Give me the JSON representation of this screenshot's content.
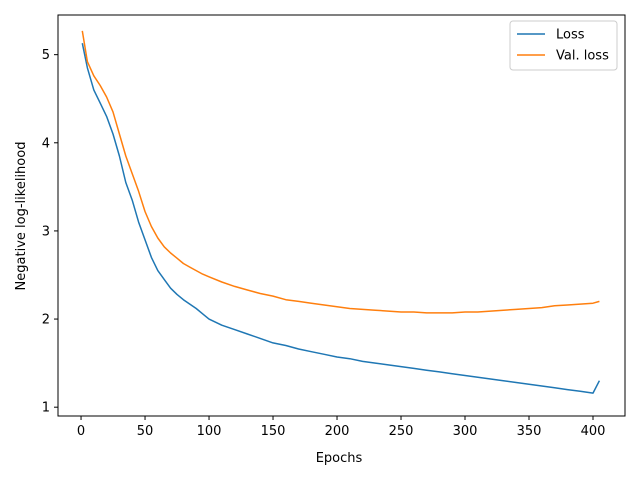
{
  "chart_data": {
    "type": "line",
    "xlabel": "Epochs",
    "ylabel": "Negative log-likelihood",
    "xlim": [
      -18,
      425
    ],
    "ylim": [
      0.9,
      5.45
    ],
    "x_ticks": [
      0,
      50,
      100,
      150,
      200,
      250,
      300,
      350,
      400
    ],
    "y_ticks": [
      1,
      2,
      3,
      4,
      5
    ],
    "grid": false,
    "legend_position": "top-right",
    "series": [
      {
        "name": "Loss",
        "color": "#1f77b4",
        "x": [
          1,
          5,
          10,
          15,
          20,
          25,
          30,
          35,
          40,
          45,
          50,
          55,
          60,
          65,
          70,
          75,
          80,
          85,
          90,
          95,
          100,
          110,
          120,
          130,
          140,
          150,
          160,
          170,
          180,
          190,
          200,
          210,
          220,
          230,
          240,
          250,
          260,
          270,
          280,
          290,
          300,
          310,
          320,
          330,
          340,
          350,
          360,
          370,
          380,
          390,
          400,
          405
        ],
        "values": [
          5.13,
          4.85,
          4.6,
          4.45,
          4.3,
          4.1,
          3.85,
          3.55,
          3.35,
          3.1,
          2.9,
          2.7,
          2.55,
          2.45,
          2.35,
          2.28,
          2.22,
          2.17,
          2.12,
          2.06,
          2.0,
          1.93,
          1.88,
          1.83,
          1.78,
          1.73,
          1.7,
          1.66,
          1.63,
          1.6,
          1.57,
          1.55,
          1.52,
          1.5,
          1.48,
          1.46,
          1.44,
          1.42,
          1.4,
          1.38,
          1.36,
          1.34,
          1.32,
          1.3,
          1.28,
          1.26,
          1.24,
          1.22,
          1.2,
          1.18,
          1.16,
          1.3
        ]
      },
      {
        "name": "Val. loss",
        "color": "#ff7f0e",
        "x": [
          1,
          5,
          10,
          15,
          20,
          25,
          30,
          35,
          40,
          45,
          50,
          55,
          60,
          65,
          70,
          75,
          80,
          85,
          90,
          95,
          100,
          110,
          120,
          130,
          140,
          150,
          160,
          170,
          180,
          190,
          200,
          210,
          220,
          230,
          240,
          250,
          260,
          270,
          280,
          290,
          300,
          310,
          320,
          330,
          340,
          350,
          360,
          370,
          380,
          390,
          400,
          405
        ],
        "values": [
          5.27,
          4.92,
          4.76,
          4.65,
          4.52,
          4.35,
          4.1,
          3.85,
          3.65,
          3.45,
          3.22,
          3.05,
          2.92,
          2.82,
          2.75,
          2.69,
          2.63,
          2.59,
          2.55,
          2.51,
          2.48,
          2.42,
          2.37,
          2.33,
          2.29,
          2.26,
          2.22,
          2.2,
          2.18,
          2.16,
          2.14,
          2.12,
          2.11,
          2.1,
          2.09,
          2.08,
          2.08,
          2.07,
          2.07,
          2.07,
          2.08,
          2.08,
          2.09,
          2.1,
          2.11,
          2.12,
          2.13,
          2.15,
          2.16,
          2.17,
          2.18,
          2.2
        ]
      }
    ]
  }
}
